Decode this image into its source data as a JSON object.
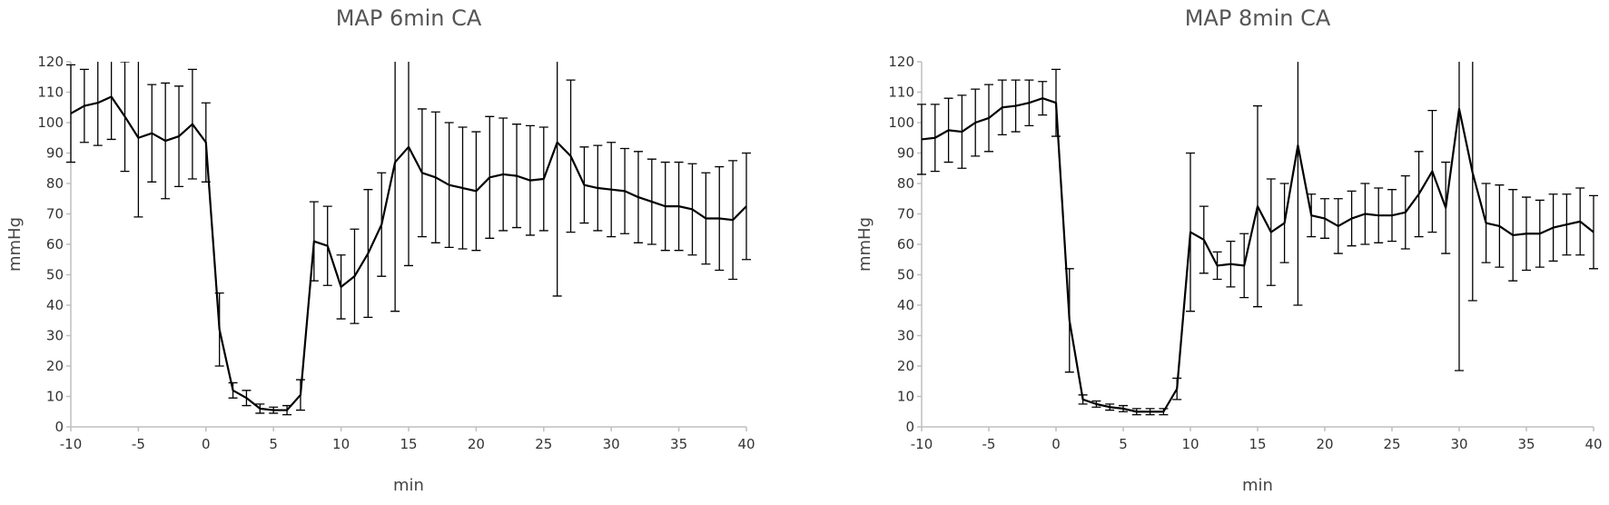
{
  "chart_data": [
    {
      "type": "line",
      "title": "MAP 6min CA",
      "x_label": "min",
      "y_label": "mmHg",
      "color": "#000000",
      "x": [
        -10,
        -9,
        -8,
        -7,
        -6,
        -5,
        -4,
        -3,
        -2,
        -1,
        0,
        1,
        2,
        3,
        4,
        5,
        6,
        7,
        8,
        9,
        10,
        11,
        12,
        13,
        14,
        15,
        16,
        17,
        18,
        19,
        20,
        21,
        22,
        23,
        24,
        25,
        26,
        27,
        28,
        29,
        30,
        31,
        32,
        33,
        34,
        35,
        36,
        37,
        38,
        39,
        40
      ],
      "values": [
        103,
        105.5,
        106.5,
        108.5,
        102,
        95,
        96.5,
        94,
        95.5,
        99.5,
        93.5,
        32,
        12,
        9.5,
        6,
        5.5,
        5.5,
        10.5,
        61,
        59.5,
        46,
        49.5,
        57,
        66.5,
        87,
        92,
        83.5,
        82,
        79.5,
        78.5,
        77.5,
        82,
        83,
        82.5,
        81,
        81.5,
        93.5,
        89,
        79.5,
        78.5,
        78,
        77.5,
        75.5,
        74,
        72.5,
        72.5,
        71.5,
        68.5,
        68.5,
        68,
        72.5
      ],
      "errors": [
        16,
        12,
        14,
        14,
        18,
        26,
        16,
        19,
        16.5,
        18,
        13,
        12,
        2.5,
        2.5,
        1.5,
        1,
        1.5,
        5,
        13,
        13,
        10.5,
        15.5,
        21,
        17,
        49,
        39,
        21,
        21.5,
        20.5,
        20,
        19.5,
        20,
        18.5,
        17,
        18,
        17,
        50.5,
        25,
        12.5,
        14,
        15.5,
        14,
        15,
        14,
        14.5,
        14.5,
        15,
        15,
        17,
        19.5,
        17.5
      ],
      "xlim": [
        -10,
        40
      ],
      "xticks": [
        -10,
        -5,
        0,
        5,
        10,
        15,
        20,
        25,
        30,
        35,
        40
      ],
      "ylim": [
        0,
        120
      ],
      "yticks": [
        0,
        10,
        20,
        30,
        40,
        50,
        60,
        70,
        80,
        90,
        100,
        110,
        120
      ]
    },
    {
      "type": "line",
      "title": "MAP 8min CA",
      "x_label": "min",
      "y_label": "mmHg",
      "color": "#000000",
      "x": [
        -10,
        -9,
        -8,
        -7,
        -6,
        -5,
        -4,
        -3,
        -2,
        -1,
        0,
        1,
        2,
        3,
        4,
        5,
        6,
        7,
        8,
        9,
        10,
        11,
        12,
        13,
        14,
        15,
        16,
        17,
        18,
        19,
        20,
        21,
        22,
        23,
        24,
        25,
        26,
        27,
        28,
        29,
        30,
        31,
        32,
        33,
        34,
        35,
        36,
        37,
        38,
        39,
        40
      ],
      "values": [
        94.5,
        95,
        97.5,
        97,
        100,
        101.5,
        105,
        105.5,
        106.5,
        108,
        106.5,
        35,
        9,
        7.5,
        6.5,
        6,
        5,
        5,
        5,
        12.5,
        64,
        61.5,
        53,
        53.5,
        53,
        72.5,
        64,
        67,
        92.5,
        69.5,
        68.5,
        66,
        68.5,
        70,
        69.5,
        69.5,
        70.5,
        76.5,
        84,
        72,
        104.5,
        83.5,
        67,
        66,
        63,
        63.5,
        63.5,
        65.5,
        66.5,
        67.5,
        64
      ],
      "errors": [
        11.5,
        11,
        10.5,
        12,
        11,
        11,
        9,
        8.5,
        7.5,
        5.5,
        11,
        17,
        1.5,
        1,
        1,
        1,
        1,
        1,
        1,
        3.5,
        26,
        11,
        4.5,
        7.5,
        10.5,
        33,
        17.5,
        13,
        52.5,
        7,
        6.5,
        9,
        9,
        10,
        9,
        8.5,
        12,
        14,
        20,
        15,
        86,
        42,
        13,
        13.5,
        15,
        12,
        11,
        11,
        10,
        11,
        12
      ],
      "xlim": [
        -10,
        40
      ],
      "xticks": [
        -10,
        -5,
        0,
        5,
        10,
        15,
        20,
        25,
        30,
        35,
        40
      ],
      "ylim": [
        0,
        120
      ],
      "yticks": [
        0,
        10,
        20,
        30,
        40,
        50,
        60,
        70,
        80,
        90,
        100,
        110,
        120
      ]
    }
  ]
}
